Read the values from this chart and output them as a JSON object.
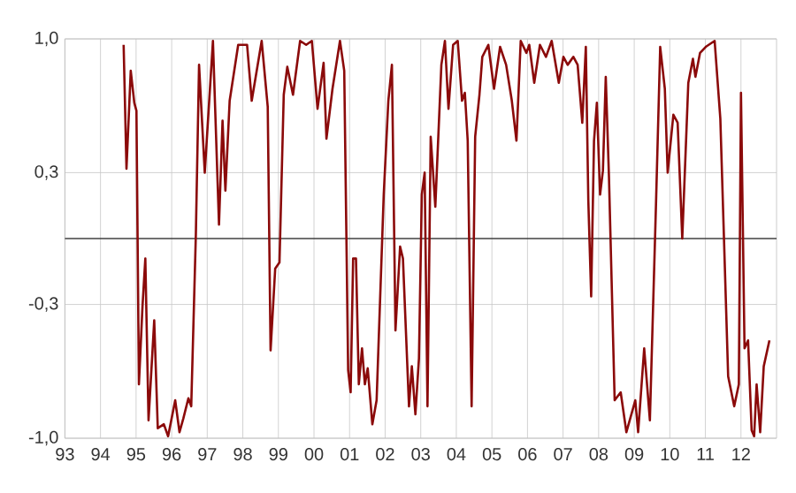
{
  "chart_data": {
    "type": "line",
    "x": [
      1994.65,
      1994.73,
      1994.85,
      1994.95,
      1995.01,
      1995.08,
      1995.18,
      1995.26,
      1995.35,
      1995.51,
      1995.61,
      1995.78,
      1995.9,
      1996.1,
      1996.22,
      1996.33,
      1996.47,
      1996.55,
      1996.68,
      1996.77,
      1996.93,
      1997.16,
      1997.33,
      1997.43,
      1997.51,
      1997.63,
      1997.87,
      1998.12,
      1998.25,
      1998.53,
      1998.7,
      1998.78,
      1998.91,
      1999.03,
      1999.15,
      1999.25,
      1999.41,
      1999.61,
      1999.78,
      1999.94,
      2000.1,
      2000.27,
      2000.35,
      2000.52,
      2000.73,
      2000.85,
      2000.96,
      2001.03,
      2001.1,
      2001.18,
      2001.26,
      2001.35,
      2001.43,
      2001.51,
      2001.64,
      2001.76,
      2001.96,
      2002.09,
      2002.19,
      2002.29,
      2002.42,
      2002.5,
      2002.67,
      2002.75,
      2002.85,
      2002.95,
      2003.03,
      2003.11,
      2003.19,
      2003.28,
      2003.41,
      2003.58,
      2003.68,
      2003.78,
      2003.91,
      2004.04,
      2004.16,
      2004.24,
      2004.32,
      2004.43,
      2004.53,
      2004.65,
      2004.73,
      2004.9,
      2005.06,
      2005.23,
      2005.4,
      2005.56,
      2005.69,
      2005.81,
      2005.97,
      2006.05,
      2006.19,
      2006.35,
      2006.52,
      2006.68,
      2006.88,
      2007.01,
      2007.13,
      2007.29,
      2007.41,
      2007.54,
      2007.64,
      2007.71,
      2007.79,
      2007.87,
      2007.95,
      2008.04,
      2008.12,
      2008.2,
      2008.29,
      2008.45,
      2008.62,
      2008.78,
      2009.03,
      2009.11,
      2009.28,
      2009.44,
      2009.61,
      2009.73,
      2009.86,
      2009.94,
      2010.1,
      2010.22,
      2010.35,
      2010.52,
      2010.65,
      2010.72,
      2010.85,
      2011.01,
      2011.26,
      2011.42,
      2011.64,
      2011.81,
      2011.94,
      2012.0,
      2012.1,
      2012.2,
      2012.3,
      2012.37,
      2012.44,
      2012.54,
      2012.64,
      2012.8
    ],
    "series": [
      {
        "color": "#8b0a0a",
        "values": [
          0.97,
          0.35,
          0.84,
          0.68,
          0.64,
          -0.73,
          -0.34,
          -0.1,
          -0.91,
          -0.41,
          -0.95,
          -0.93,
          -0.99,
          -0.81,
          -0.97,
          -0.9,
          -0.8,
          -0.84,
          0.02,
          0.87,
          0.33,
          0.99,
          0.07,
          0.59,
          0.24,
          0.69,
          0.97,
          0.97,
          0.69,
          0.99,
          0.66,
          -0.56,
          -0.15,
          -0.12,
          0.72,
          0.86,
          0.72,
          0.99,
          0.97,
          0.99,
          0.65,
          0.88,
          0.5,
          0.75,
          0.99,
          0.84,
          -0.66,
          -0.77,
          -0.1,
          -0.1,
          -0.73,
          -0.55,
          -0.73,
          -0.65,
          -0.93,
          -0.81,
          0.22,
          0.69,
          0.87,
          -0.46,
          -0.04,
          -0.1,
          -0.84,
          -0.64,
          -0.88,
          -0.6,
          0.22,
          0.33,
          -0.84,
          0.51,
          0.16,
          0.87,
          0.99,
          0.65,
          0.97,
          0.99,
          0.69,
          0.73,
          0.49,
          -0.84,
          0.51,
          0.72,
          0.91,
          0.97,
          0.75,
          0.96,
          0.87,
          0.69,
          0.49,
          0.99,
          0.93,
          0.97,
          0.78,
          0.97,
          0.91,
          0.99,
          0.78,
          0.91,
          0.87,
          0.91,
          0.87,
          0.58,
          0.96,
          0.19,
          -0.29,
          0.49,
          0.68,
          0.22,
          0.34,
          0.81,
          0.31,
          -0.81,
          -0.77,
          -0.97,
          -0.81,
          -0.97,
          -0.55,
          -0.91,
          0.16,
          0.96,
          0.75,
          0.33,
          0.62,
          0.58,
          0,
          0.78,
          0.9,
          0.81,
          0.93,
          0.96,
          0.99,
          0.6,
          -0.69,
          -0.84,
          -0.73,
          0.73,
          -0.55,
          -0.51,
          -0.96,
          -0.99,
          -0.73,
          -0.97,
          -0.64,
          -0.51
        ]
      }
    ],
    "xlim": [
      1993,
      2013
    ],
    "xticks": [
      {
        "value": 1993,
        "label": "93"
      },
      {
        "value": 1994,
        "label": "94"
      },
      {
        "value": 1995,
        "label": "95"
      },
      {
        "value": 1996,
        "label": "96"
      },
      {
        "value": 1997,
        "label": "97"
      },
      {
        "value": 1998,
        "label": "98"
      },
      {
        "value": 1999,
        "label": "99"
      },
      {
        "value": 2000,
        "label": "00"
      },
      {
        "value": 2001,
        "label": "01"
      },
      {
        "value": 2002,
        "label": "02"
      },
      {
        "value": 2003,
        "label": "03"
      },
      {
        "value": 2004,
        "label": "04"
      },
      {
        "value": 2005,
        "label": "05"
      },
      {
        "value": 2006,
        "label": "06"
      },
      {
        "value": 2007,
        "label": "07"
      },
      {
        "value": 2008,
        "label": "08"
      },
      {
        "value": 2009,
        "label": "09"
      },
      {
        "value": 2010,
        "label": "10"
      },
      {
        "value": 2011,
        "label": "11"
      },
      {
        "value": 2012,
        "label": "12"
      }
    ],
    "ylim": [
      -1,
      1
    ],
    "yticks": [
      {
        "value": -1,
        "label": "-1,0"
      },
      {
        "value": -0.33,
        "label": "-0,3"
      },
      {
        "value": 0.33,
        "label": "0,3"
      },
      {
        "value": 1,
        "label": "1,0"
      }
    ],
    "ref_lines": [
      {
        "axis": "y",
        "value": 0,
        "color": "#404040"
      }
    ],
    "grid": true,
    "legend": false,
    "marker": "none",
    "line_style": "solid"
  }
}
